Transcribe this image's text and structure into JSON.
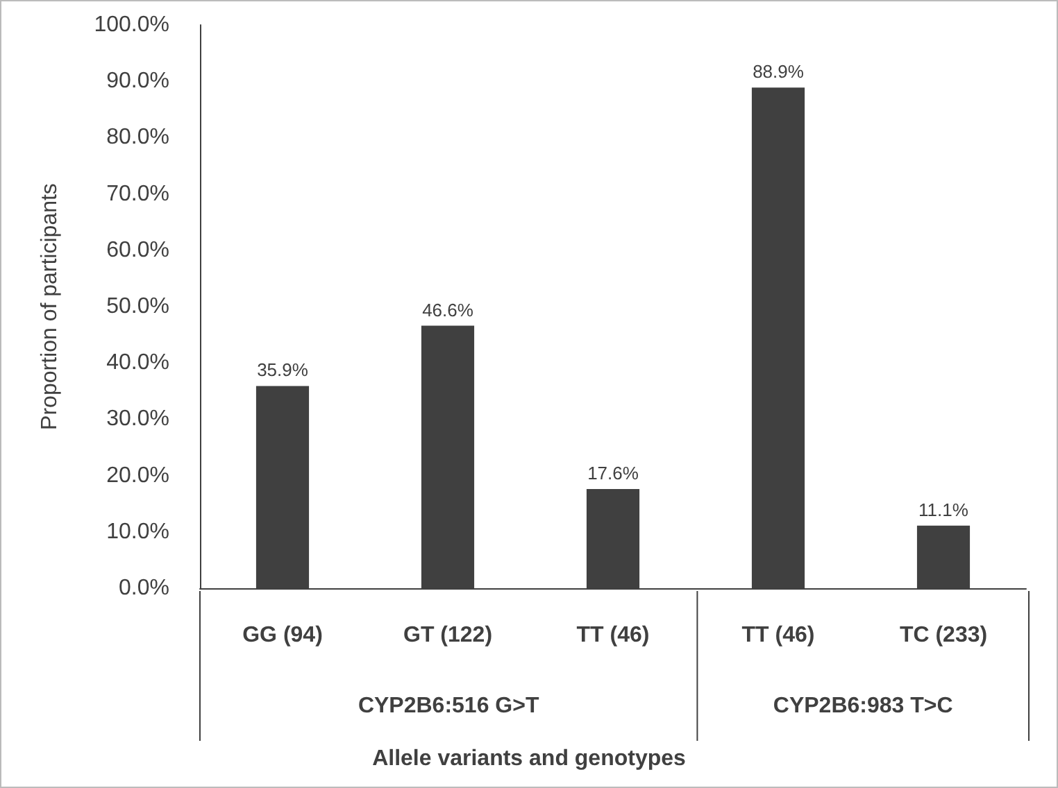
{
  "chart_data": {
    "type": "bar",
    "categories": [
      "GG (94)",
      "GT (122)",
      "TT (46)",
      "TT (46)",
      "TC (233)"
    ],
    "values": [
      35.9,
      46.6,
      17.6,
      88.9,
      11.1
    ],
    "value_labels": [
      "35.9%",
      "46.6%",
      "17.6%",
      "88.9%",
      "11.1%"
    ],
    "color": "#404040",
    "xlabel": "Allele variants and genotypes",
    "ylabel": "Proportion of participants",
    "annotations": [
      "CYP2B6:516 G>T",
      "CYP2B6:983 T>C"
    ],
    "ylim": [
      0,
      100
    ],
    "yticks": [
      {
        "value": 0,
        "label": "0.0%"
      },
      {
        "value": 10,
        "label": "10.0%"
      },
      {
        "value": 20,
        "label": "20.0%"
      },
      {
        "value": 30,
        "label": "30.0%"
      },
      {
        "value": 40,
        "label": "40.0%"
      },
      {
        "value": 50,
        "label": "50.0%"
      },
      {
        "value": 60,
        "label": "60.0%"
      },
      {
        "value": 70,
        "label": "70.0%"
      },
      {
        "value": 80,
        "label": "80.0%"
      },
      {
        "value": 90,
        "label": "90.0%"
      },
      {
        "value": 100,
        "label": "100.0%"
      }
    ],
    "grid": false
  }
}
